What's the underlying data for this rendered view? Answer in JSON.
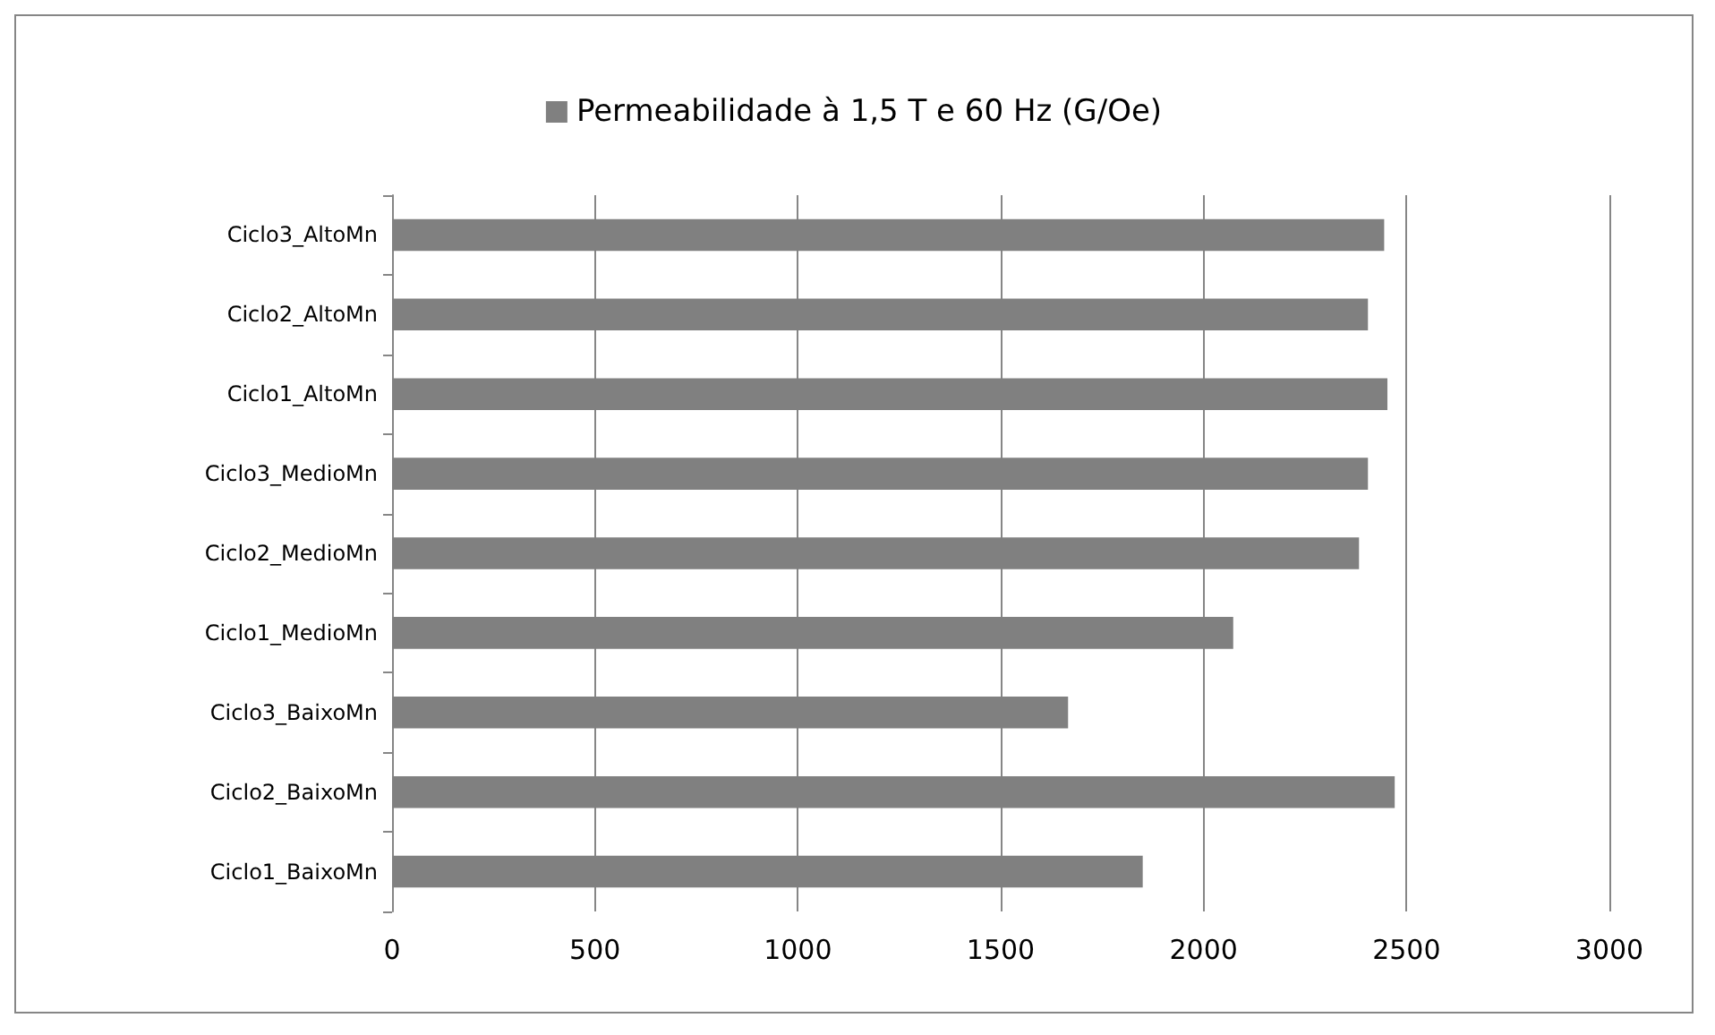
{
  "chart_data": {
    "type": "bar",
    "orientation": "horizontal",
    "categories": [
      "Ciclo3_AltoMn",
      "Ciclo2_AltoMn",
      "Ciclo1_AltoMn",
      "Ciclo3_MedioMn",
      "Ciclo2_MedioMn",
      "Ciclo1_MedioMn",
      "Ciclo3_BaixoMn",
      "Ciclo2_BaixoMn",
      "Ciclo1_BaixoMn"
    ],
    "series": [
      {
        "name": "Permeabilidade à 1,5 T e 60 Hz (G/Oe)",
        "color": "#808080",
        "values": [
          2445,
          2405,
          2453,
          2405,
          2383,
          2073,
          1666,
          2471,
          1850
        ]
      }
    ],
    "xlim": [
      0,
      3000
    ],
    "xticks": [
      0,
      500,
      1000,
      1500,
      2000,
      2500,
      3000
    ],
    "grid": "x",
    "legend": "top"
  }
}
